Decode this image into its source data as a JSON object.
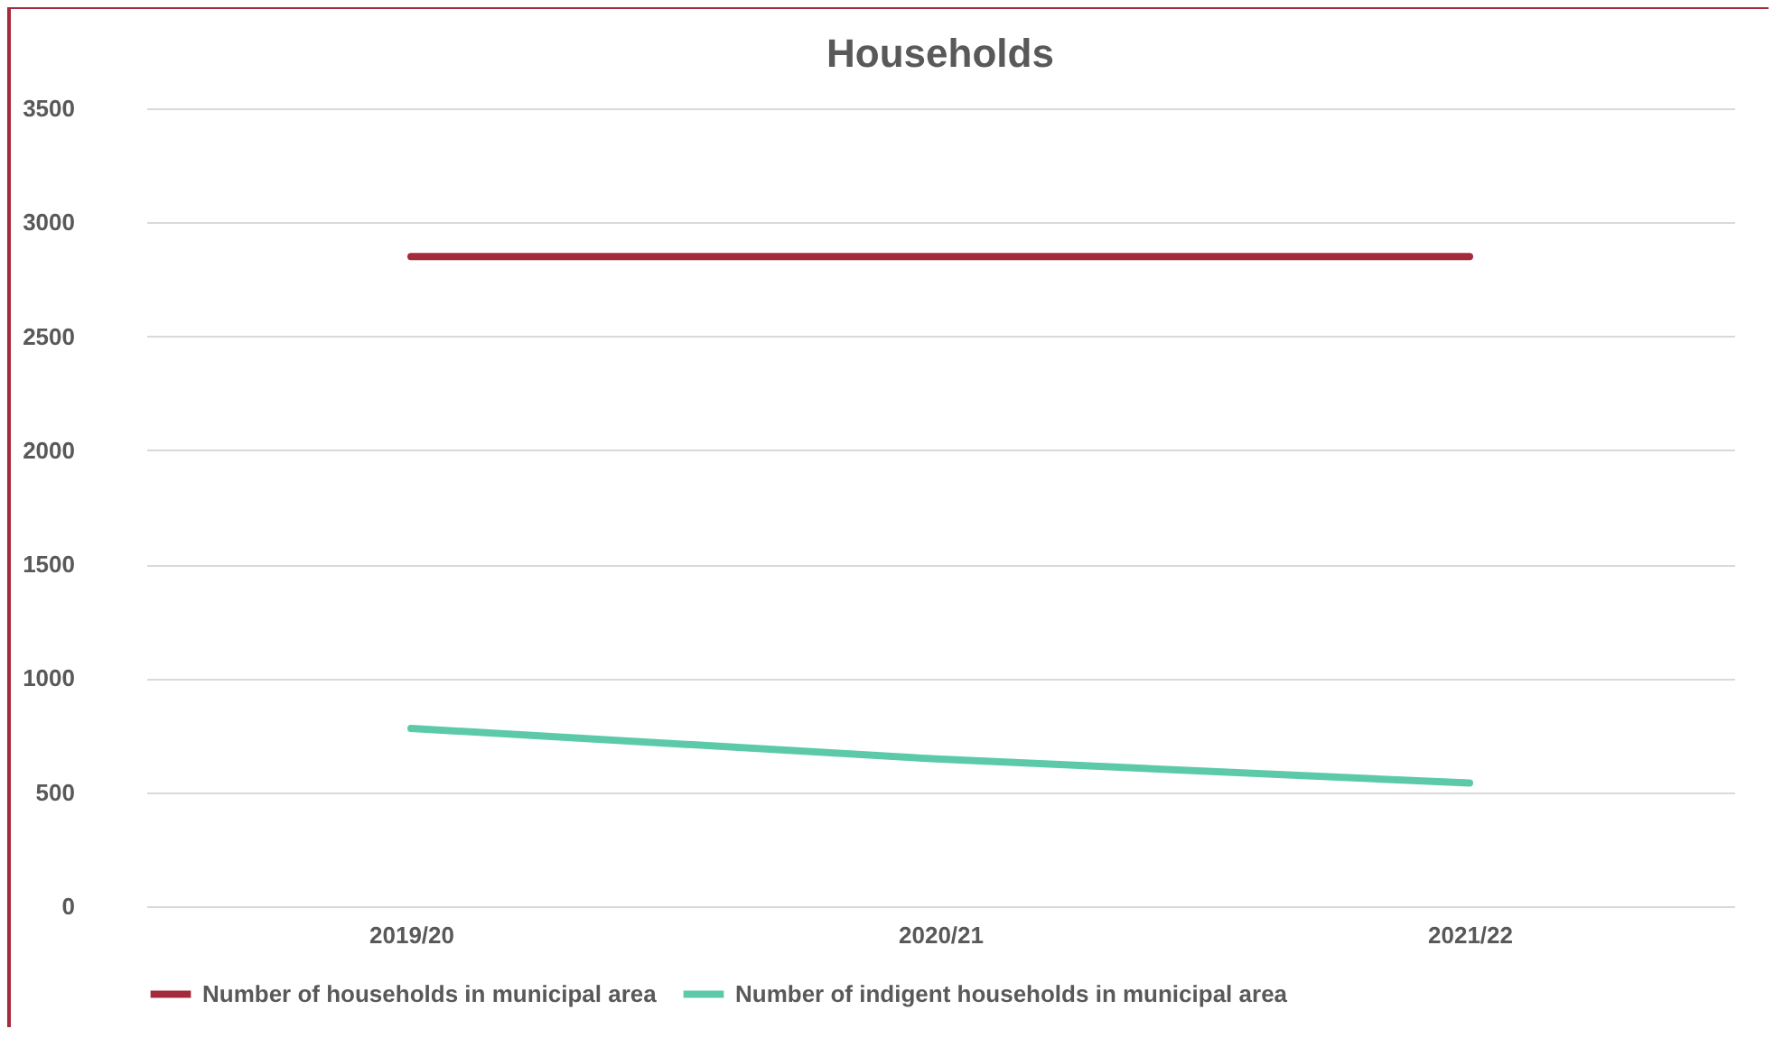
{
  "chart_data": {
    "type": "line",
    "title": "Households",
    "categories": [
      "2019/20",
      "2020/21",
      "2021/22"
    ],
    "series": [
      {
        "name": "Number of households in municipal area",
        "color": "#a32b3b",
        "values": [
          2850,
          2850,
          2850
        ]
      },
      {
        "name": "Number of indigent households in municipal area",
        "color": "#5ccaa8",
        "values": [
          780,
          645,
          540
        ]
      }
    ],
    "ylim": [
      0,
      3500
    ],
    "yticks": [
      0,
      500,
      1000,
      1500,
      2000,
      2500,
      3000,
      3500
    ],
    "grid": "y",
    "legend": "bottom",
    "marker": "none",
    "line_style": "solid"
  }
}
